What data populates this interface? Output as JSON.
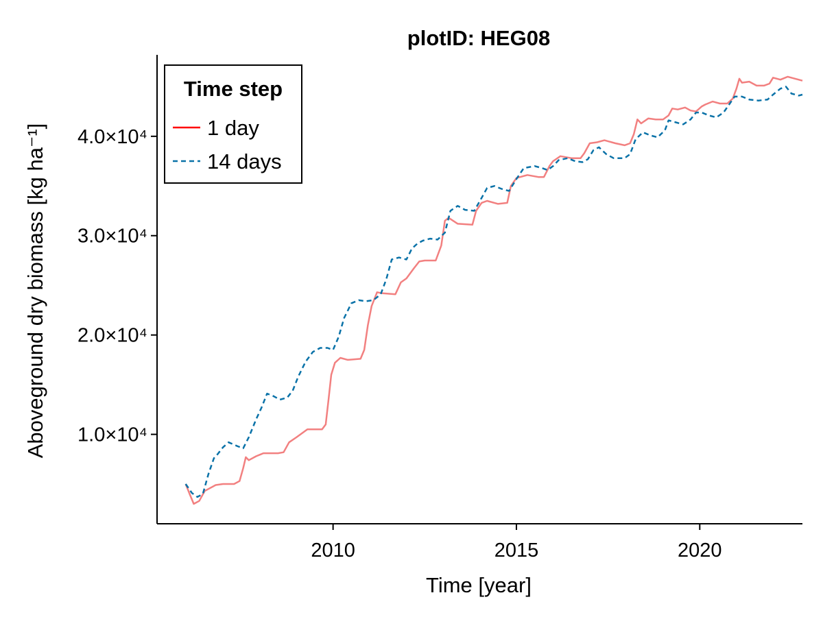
{
  "chart_data": {
    "type": "line",
    "title": "plotID: HEG08",
    "xlabel": "Time [year]",
    "ylabel": "Aboveground dry biomass [kg ha⁻¹]",
    "xlim": [
      2005.2,
      2022.8
    ],
    "ylim": [
      1000,
      48200
    ],
    "xticks": [
      2010,
      2015,
      2020
    ],
    "yticks": [
      {
        "value": 10000,
        "label": "1.0×10⁴"
      },
      {
        "value": 20000,
        "label": "2.0×10⁴"
      },
      {
        "value": 30000,
        "label": "3.0×10⁴"
      },
      {
        "value": 40000,
        "label": "4.0×10⁴"
      }
    ],
    "grid": false,
    "legend": {
      "title": "Time step",
      "position": "top-left"
    },
    "series": [
      {
        "name": "1 day",
        "color": "#f28080",
        "legend_color": "#ff0000",
        "style": "solid",
        "points": [
          [
            2005.98,
            5000
          ],
          [
            2006.1,
            3900
          ],
          [
            2006.2,
            3000
          ],
          [
            2006.35,
            3300
          ],
          [
            2006.5,
            4300
          ],
          [
            2006.8,
            4900
          ],
          [
            2007.0,
            5000
          ],
          [
            2007.3,
            5000
          ],
          [
            2007.45,
            5300
          ],
          [
            2007.55,
            6600
          ],
          [
            2007.62,
            7700
          ],
          [
            2007.7,
            7400
          ],
          [
            2007.9,
            7800
          ],
          [
            2008.1,
            8100
          ],
          [
            2008.5,
            8100
          ],
          [
            2008.65,
            8200
          ],
          [
            2008.8,
            9200
          ],
          [
            2009.0,
            9700
          ],
          [
            2009.3,
            10500
          ],
          [
            2009.7,
            10500
          ],
          [
            2009.8,
            11000
          ],
          [
            2009.88,
            13600
          ],
          [
            2009.95,
            16000
          ],
          [
            2010.05,
            17200
          ],
          [
            2010.2,
            17700
          ],
          [
            2010.4,
            17500
          ],
          [
            2010.75,
            17600
          ],
          [
            2010.85,
            18500
          ],
          [
            2010.95,
            21000
          ],
          [
            2011.05,
            22900
          ],
          [
            2011.2,
            24300
          ],
          [
            2011.35,
            24200
          ],
          [
            2011.7,
            24100
          ],
          [
            2011.85,
            25300
          ],
          [
            2012.0,
            25700
          ],
          [
            2012.2,
            26700
          ],
          [
            2012.35,
            27400
          ],
          [
            2012.5,
            27500
          ],
          [
            2012.8,
            27500
          ],
          [
            2012.95,
            29000
          ],
          [
            2013.05,
            31500
          ],
          [
            2013.15,
            31800
          ],
          [
            2013.4,
            31200
          ],
          [
            2013.8,
            31100
          ],
          [
            2013.9,
            32500
          ],
          [
            2014.05,
            33300
          ],
          [
            2014.2,
            33500
          ],
          [
            2014.5,
            33200
          ],
          [
            2014.75,
            33300
          ],
          [
            2014.85,
            35000
          ],
          [
            2015.0,
            35800
          ],
          [
            2015.3,
            36100
          ],
          [
            2015.6,
            35900
          ],
          [
            2015.75,
            35900
          ],
          [
            2015.9,
            37000
          ],
          [
            2016.0,
            37500
          ],
          [
            2016.2,
            38000
          ],
          [
            2016.5,
            37800
          ],
          [
            2016.75,
            37800
          ],
          [
            2016.85,
            38300
          ],
          [
            2017.0,
            39300
          ],
          [
            2017.2,
            39400
          ],
          [
            2017.4,
            39600
          ],
          [
            2017.7,
            39300
          ],
          [
            2017.95,
            39100
          ],
          [
            2018.1,
            39300
          ],
          [
            2018.2,
            40200
          ],
          [
            2018.3,
            41700
          ],
          [
            2018.4,
            41300
          ],
          [
            2018.6,
            41800
          ],
          [
            2018.8,
            41700
          ],
          [
            2019.0,
            41700
          ],
          [
            2019.15,
            42100
          ],
          [
            2019.25,
            42800
          ],
          [
            2019.4,
            42700
          ],
          [
            2019.6,
            42900
          ],
          [
            2019.75,
            42600
          ],
          [
            2019.9,
            42500
          ],
          [
            2020.05,
            43000
          ],
          [
            2020.15,
            43200
          ],
          [
            2020.35,
            43500
          ],
          [
            2020.55,
            43300
          ],
          [
            2020.75,
            43300
          ],
          [
            2020.9,
            43800
          ],
          [
            2021.0,
            44800
          ],
          [
            2021.08,
            45800
          ],
          [
            2021.15,
            45400
          ],
          [
            2021.35,
            45500
          ],
          [
            2021.55,
            45100
          ],
          [
            2021.75,
            45100
          ],
          [
            2021.9,
            45300
          ],
          [
            2022.0,
            45900
          ],
          [
            2022.2,
            45700
          ],
          [
            2022.4,
            46000
          ],
          [
            2022.6,
            45800
          ],
          [
            2022.8,
            45600
          ]
        ]
      },
      {
        "name": "14 days",
        "color": "#0a72a8",
        "legend_color": "#0a72a8",
        "style": "dashed",
        "points": [
          [
            2005.98,
            5000
          ],
          [
            2006.15,
            4100
          ],
          [
            2006.3,
            3700
          ],
          [
            2006.45,
            4000
          ],
          [
            2006.6,
            6000
          ],
          [
            2006.75,
            7600
          ],
          [
            2006.85,
            8000
          ],
          [
            2007.0,
            8700
          ],
          [
            2007.15,
            9200
          ],
          [
            2007.4,
            8800
          ],
          [
            2007.55,
            8600
          ],
          [
            2007.7,
            9700
          ],
          [
            2007.9,
            11500
          ],
          [
            2008.05,
            12700
          ],
          [
            2008.2,
            14100
          ],
          [
            2008.35,
            13900
          ],
          [
            2008.55,
            13500
          ],
          [
            2008.75,
            13700
          ],
          [
            2008.9,
            14400
          ],
          [
            2009.05,
            15800
          ],
          [
            2009.25,
            17300
          ],
          [
            2009.45,
            18300
          ],
          [
            2009.65,
            18700
          ],
          [
            2009.85,
            18700
          ],
          [
            2010.0,
            18500
          ],
          [
            2010.15,
            19800
          ],
          [
            2010.3,
            21700
          ],
          [
            2010.5,
            23200
          ],
          [
            2010.7,
            23500
          ],
          [
            2010.9,
            23400
          ],
          [
            2011.1,
            23500
          ],
          [
            2011.3,
            24100
          ],
          [
            2011.45,
            25600
          ],
          [
            2011.6,
            27600
          ],
          [
            2011.8,
            27800
          ],
          [
            2012.0,
            27600
          ],
          [
            2012.15,
            28700
          ],
          [
            2012.3,
            29200
          ],
          [
            2012.45,
            29500
          ],
          [
            2012.65,
            29700
          ],
          [
            2012.85,
            29600
          ],
          [
            2013.05,
            30300
          ],
          [
            2013.2,
            32500
          ],
          [
            2013.4,
            33000
          ],
          [
            2013.6,
            32600
          ],
          [
            2013.85,
            32500
          ],
          [
            2014.05,
            33800
          ],
          [
            2014.2,
            34800
          ],
          [
            2014.4,
            35000
          ],
          [
            2014.6,
            34700
          ],
          [
            2014.8,
            34500
          ],
          [
            2015.0,
            35700
          ],
          [
            2015.2,
            36800
          ],
          [
            2015.5,
            37000
          ],
          [
            2015.7,
            36800
          ],
          [
            2015.85,
            36600
          ],
          [
            2016.0,
            37000
          ],
          [
            2016.15,
            37600
          ],
          [
            2016.4,
            37800
          ],
          [
            2016.6,
            37500
          ],
          [
            2016.8,
            37400
          ],
          [
            2016.95,
            37700
          ],
          [
            2017.1,
            38600
          ],
          [
            2017.25,
            38900
          ],
          [
            2017.45,
            38200
          ],
          [
            2017.65,
            37800
          ],
          [
            2017.95,
            37800
          ],
          [
            2018.1,
            38200
          ],
          [
            2018.25,
            39700
          ],
          [
            2018.45,
            40400
          ],
          [
            2018.65,
            40100
          ],
          [
            2018.85,
            39900
          ],
          [
            2019.05,
            40600
          ],
          [
            2019.15,
            41600
          ],
          [
            2019.35,
            41400
          ],
          [
            2019.55,
            41200
          ],
          [
            2019.75,
            41700
          ],
          [
            2019.9,
            42400
          ],
          [
            2020.05,
            42400
          ],
          [
            2020.25,
            42100
          ],
          [
            2020.45,
            41900
          ],
          [
            2020.65,
            42400
          ],
          [
            2020.8,
            43200
          ],
          [
            2020.95,
            44000
          ],
          [
            2021.15,
            44000
          ],
          [
            2021.35,
            43700
          ],
          [
            2021.6,
            43600
          ],
          [
            2021.85,
            43700
          ],
          [
            2022.0,
            44200
          ],
          [
            2022.2,
            44800
          ],
          [
            2022.35,
            45000
          ],
          [
            2022.5,
            44300
          ],
          [
            2022.7,
            44100
          ],
          [
            2022.8,
            44200
          ]
        ]
      }
    ]
  }
}
